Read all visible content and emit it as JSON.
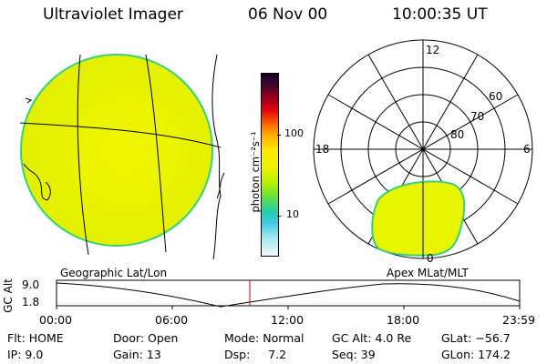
{
  "header": {
    "instrument": "Ultraviolet Imager",
    "date": "06 Nov 00",
    "time": "10:00:35 UT"
  },
  "geo_panel": {
    "label": "Geographic Lat/Lon"
  },
  "polar_panel": {
    "label": "Apex MLat/MLT",
    "mlt_labels": [
      "12",
      "18",
      "6",
      "0"
    ],
    "lat_labels": [
      "60",
      "70",
      "80"
    ]
  },
  "colorbar": {
    "unit_label": "photon cm⁻²s⁻¹",
    "tick_labels": [
      "100",
      "10"
    ]
  },
  "altitude_plot": {
    "ylabel": "GC Alt",
    "ytick_labels": [
      "9.0",
      "1.8"
    ],
    "xtick_labels": [
      "00:00",
      "06:00",
      "12:00",
      "18:00",
      "23:59"
    ],
    "marker_color": "#cc0000"
  },
  "info": {
    "flt": "Flt: HOME",
    "ip": "IP:  9.0",
    "door": "Door: Open",
    "gain": "Gain: 13",
    "mode": "Mode: Normal",
    "dsp": "Dsp:     7.2",
    "gcalt": "GC Alt: 4.0 Re",
    "seq": "Seq: 39",
    "glat": "GLat: −56.7",
    "glon": "GLon: 174.2"
  },
  "colors": {
    "emission_yellow": "#e8f400",
    "edge_green": "#35d07a"
  }
}
